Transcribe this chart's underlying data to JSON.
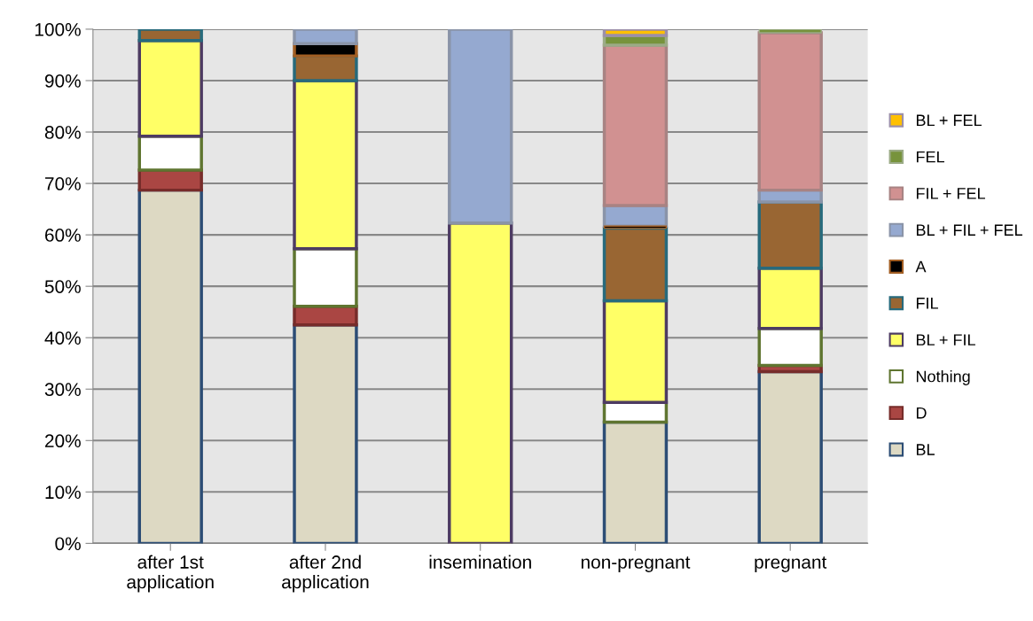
{
  "chart_data": {
    "type": "bar",
    "stacked": true,
    "categories": [
      "after 1st\napplication",
      "after 2nd\napplication",
      "insemination",
      "non-pregnant",
      "pregnant"
    ],
    "series": [
      {
        "name": "BL",
        "color": "#ddd9c3",
        "values": [
          68.7,
          42.5,
          null,
          23.6,
          33.4
        ]
      },
      {
        "name": "D",
        "color": "#aa4643",
        "values": [
          3.9,
          3.6,
          null,
          null,
          1.2
        ]
      },
      {
        "name": "Nothing",
        "color": "#ffffff",
        "values": [
          6.6,
          11.2,
          null,
          3.8,
          7.2
        ]
      },
      {
        "name": "BL + FIL",
        "color": "#ffff66",
        "values": [
          18.6,
          32.7,
          62.3,
          19.8,
          11.7
        ]
      },
      {
        "name": "FIL",
        "color": "#996633",
        "values": [
          2.2,
          4.8,
          null,
          14.1,
          12.9
        ]
      },
      {
        "name": "A",
        "color": "#000000",
        "values": [
          null,
          2.4,
          null,
          0.4,
          null
        ]
      },
      {
        "name": "BL + FIL + FEL",
        "color": "#95a9d0",
        "values": [
          null,
          2.8,
          37.7,
          4.0,
          2.3
        ]
      },
      {
        "name": "FIL + FEL",
        "color": "#d19191",
        "values": [
          null,
          null,
          null,
          31.2,
          30.6
        ]
      },
      {
        "name": "FEL",
        "color": "#77933c",
        "values": [
          null,
          null,
          null,
          1.9,
          0.7
        ]
      },
      {
        "name": "BL + FEL",
        "color": "#ffc000",
        "values": [
          null,
          null,
          null,
          1.2,
          null
        ]
      }
    ],
    "ylim": [
      0,
      100
    ],
    "yticks": [
      {
        "value": 0,
        "label": "0%"
      },
      {
        "value": 10,
        "label": "10%"
      },
      {
        "value": 20,
        "label": "20%"
      },
      {
        "value": 30,
        "label": "30%"
      },
      {
        "value": 40,
        "label": "40%"
      },
      {
        "value": 50,
        "label": "50%"
      },
      {
        "value": 60,
        "label": "60%"
      },
      {
        "value": 70,
        "label": "70%"
      },
      {
        "value": 80,
        "label": "80%"
      },
      {
        "value": 90,
        "label": "90%"
      },
      {
        "value": 100,
        "label": "100%"
      }
    ],
    "grid": "y",
    "legend": "right"
  }
}
